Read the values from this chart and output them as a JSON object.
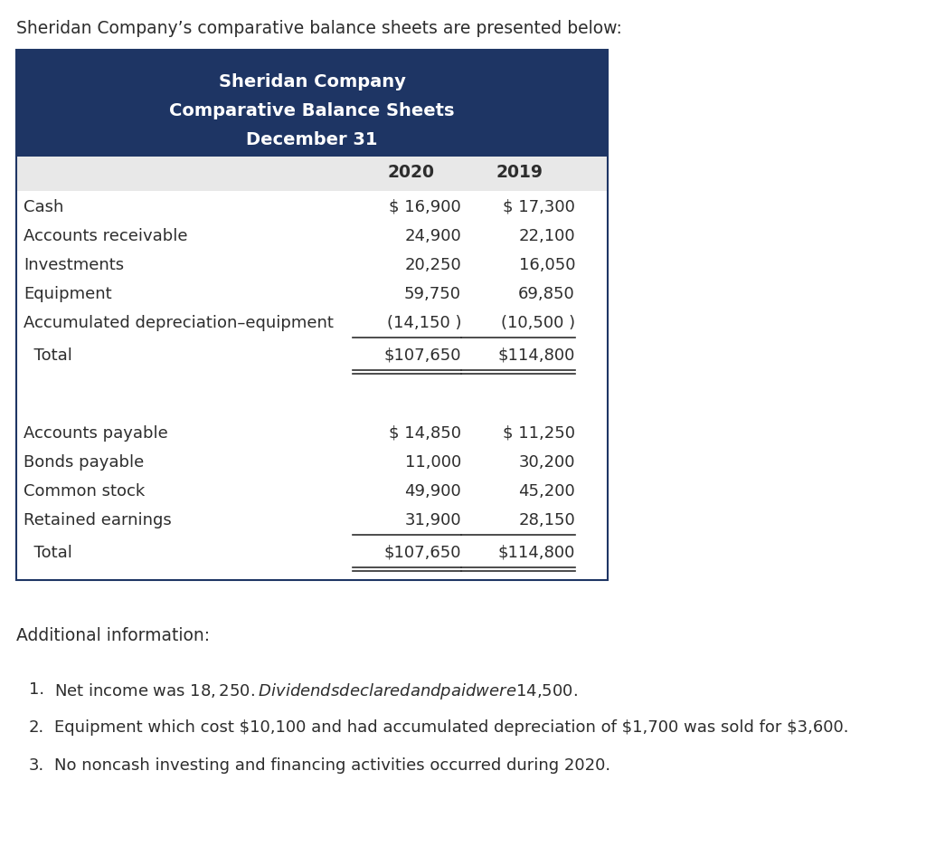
{
  "page_title": "Sheridan Company’s comparative balance sheets are presented below:",
  "table_title_line1": "Sheridan Company",
  "table_title_line2": "Comparative Balance Sheets",
  "table_title_line3": "December 31",
  "header_bg": "#1e3564",
  "header_text_color": "#ffffff",
  "col_header_bg": "#e8e8e8",
  "col_header_2020": "2020",
  "col_header_2019": "2019",
  "rows_assets": [
    [
      "Cash",
      "$ 16,900",
      "$ 17,300"
    ],
    [
      "Accounts receivable",
      "24,900",
      "22,100"
    ],
    [
      "Investments",
      "20,250",
      "16,050"
    ],
    [
      "Equipment",
      "59,750",
      "69,850"
    ],
    [
      "Accumulated depreciation–equipment",
      "(14,150 )",
      "(10,500 )"
    ]
  ],
  "total_assets": [
    "Total",
    "$107,650",
    "$114,800"
  ],
  "rows_liabilities": [
    [
      "Accounts payable",
      "$ 14,850",
      "$ 11,250"
    ],
    [
      "Bonds payable",
      "11,000",
      "30,200"
    ],
    [
      "Common stock",
      "49,900",
      "45,200"
    ],
    [
      "Retained earnings",
      "31,900",
      "28,150"
    ]
  ],
  "total_liabilities": [
    "Total",
    "$107,650",
    "$114,800"
  ],
  "additional_info_title": "Additional information:",
  "additional_items": [
    "Net income was $18,250. Dividends declared and paid were $14,500.",
    "Equipment which cost $10,100 and had accumulated depreciation of $1,700 was sold for $3,600.",
    "No noncash investing and financing activities occurred during 2020."
  ],
  "bg_color": "#ffffff",
  "table_border_color": "#1e3564",
  "row_text_color": "#2d2d2d",
  "line_color": "#2d2d2d",
  "font_size_page_title": 13.5,
  "font_size_table_title": 14,
  "font_size_col_header": 13.5,
  "font_size_data": 13,
  "font_size_total": 13,
  "font_size_additional_title": 13.5,
  "font_size_additional": 13
}
